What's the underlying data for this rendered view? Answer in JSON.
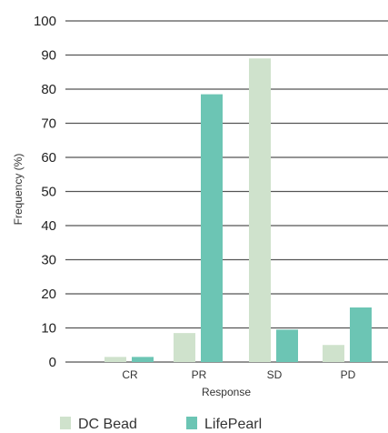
{
  "chart_data": {
    "type": "bar",
    "title": "",
    "xlabel": "Response",
    "ylabel": "Frequency (%)",
    "ylim": [
      0,
      100
    ],
    "yticks": [
      0,
      10,
      20,
      30,
      40,
      50,
      60,
      70,
      80,
      90,
      100
    ],
    "categories": [
      "CR",
      "PR",
      "SD",
      "PD"
    ],
    "series": [
      {
        "name": "DC Bead",
        "values": [
          1.5,
          8.5,
          89,
          5
        ],
        "color": "#cfe2cc"
      },
      {
        "name": "LifePearl",
        "values": [
          1.5,
          78.5,
          9.5,
          16
        ],
        "color": "#6cc5b4"
      }
    ],
    "grid": true,
    "legend_position": "bottom-left"
  }
}
